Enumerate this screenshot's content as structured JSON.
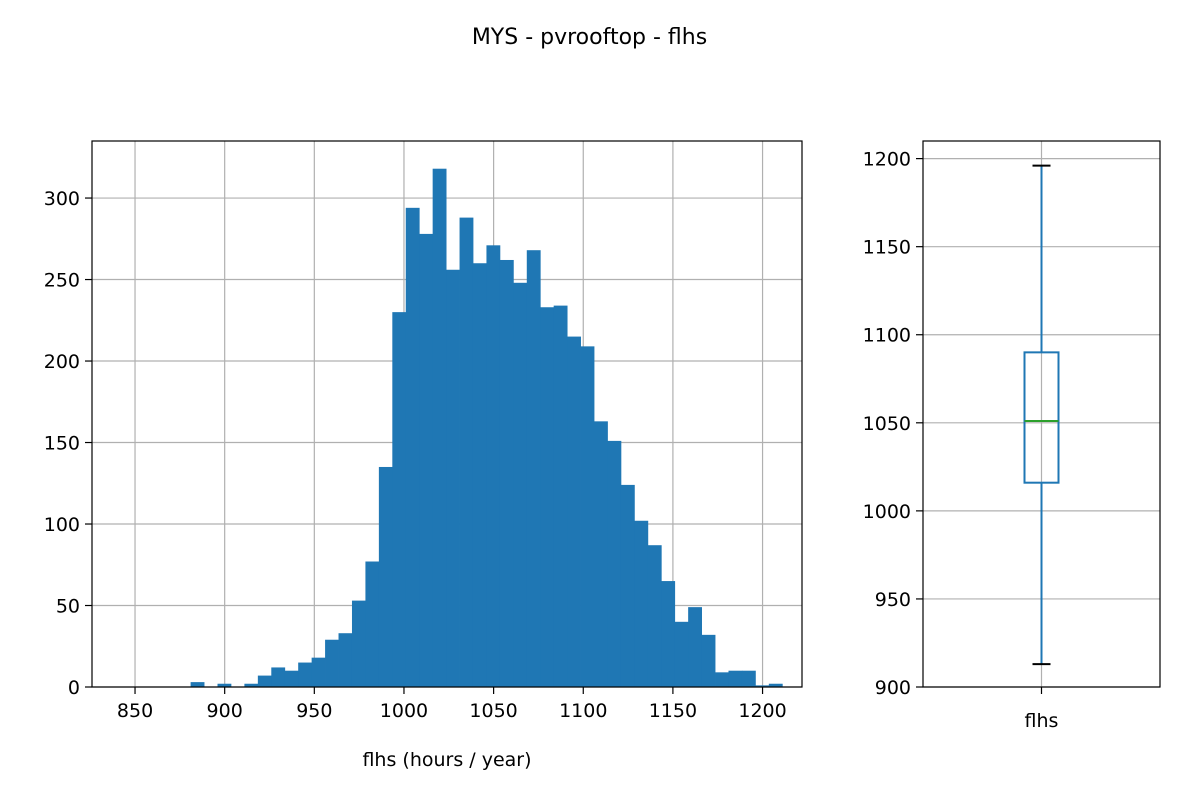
{
  "figure": {
    "title": "MYS - pvrooftop - flhs"
  },
  "chart_data": [
    {
      "type": "bar",
      "subtype": "histogram",
      "title": "",
      "xlabel": "flhs (hours / year)",
      "ylabel": "",
      "xlim": [
        826,
        1222
      ],
      "ylim": [
        0,
        335
      ],
      "xticks": [
        850,
        900,
        950,
        1000,
        1050,
        1100,
        1150,
        1200
      ],
      "yticks": [
        0,
        50,
        100,
        150,
        200,
        250,
        300
      ],
      "grid": true,
      "bar_color": "#1f77b4",
      "bin_start": 843.5,
      "bin_width": 7.5,
      "counts": [
        0,
        0,
        0,
        0,
        0,
        3,
        0,
        2,
        0,
        2,
        7,
        12,
        10,
        15,
        18,
        29,
        33,
        53,
        77,
        135,
        230,
        294,
        278,
        318,
        256,
        288,
        260,
        271,
        262,
        248,
        268,
        233,
        234,
        215,
        209,
        163,
        151,
        124,
        102,
        87,
        65,
        40,
        49,
        32,
        9,
        10,
        10,
        1,
        2
      ]
    },
    {
      "type": "box",
      "title": "",
      "categories": [
        "flhs"
      ],
      "ylim": [
        900,
        1210
      ],
      "yticks": [
        900,
        950,
        1000,
        1050,
        1100,
        1150,
        1200
      ],
      "grid": true,
      "whisker_low": 913,
      "q1": 1016,
      "median": 1051,
      "q3": 1090,
      "whisker_high": 1196,
      "box_color": "#1f77b4",
      "median_color": "#2ca02c"
    }
  ]
}
